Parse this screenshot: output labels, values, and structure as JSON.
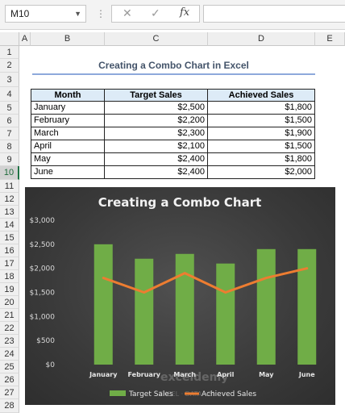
{
  "formula_bar": {
    "name_box": "M10",
    "cancel_icon": "✕",
    "enter_icon": "✓",
    "function_icon": "fx",
    "formula": ""
  },
  "columns": [
    "A",
    "B",
    "C",
    "D",
    "E"
  ],
  "rows": [
    "1",
    "2",
    "3",
    "4",
    "5",
    "6",
    "7",
    "8",
    "9",
    "10",
    "11",
    "12",
    "13",
    "14",
    "15",
    "16",
    "17",
    "18",
    "19",
    "20",
    "21",
    "22",
    "23",
    "24",
    "25",
    "26",
    "27",
    "28"
  ],
  "selected_row": "10",
  "sheet_title": "Creating a Combo Chart in Excel",
  "table": {
    "headers": [
      "Month",
      "Target Sales",
      "Achieved Sales"
    ],
    "rows": [
      [
        "January",
        "$2,500",
        "$1,800"
      ],
      [
        "February",
        "$2,200",
        "$1,500"
      ],
      [
        "March",
        "$2,300",
        "$1,900"
      ],
      [
        "April",
        "$2,100",
        "$1,500"
      ],
      [
        "May",
        "$2,400",
        "$1,800"
      ],
      [
        "June",
        "$2,400",
        "$2,000"
      ]
    ]
  },
  "chart_data": {
    "type": "bar",
    "title": "Creating a Combo Chart",
    "categories": [
      "January",
      "February",
      "March",
      "April",
      "May",
      "June"
    ],
    "series": [
      {
        "name": "Target Sales",
        "type": "bar",
        "values": [
          2500,
          2200,
          2300,
          2100,
          2400,
          2400
        ],
        "color": "#70ad47"
      },
      {
        "name": "Achieved Sales",
        "type": "line",
        "values": [
          1800,
          1500,
          1900,
          1500,
          1800,
          2000
        ],
        "color": "#ed7d31"
      }
    ],
    "y_ticks": [
      "$0",
      "$500",
      "$1,000",
      "$1,500",
      "$2,000",
      "$2,500",
      "$3,000"
    ],
    "ylim": [
      0,
      3000
    ],
    "xlabel": "",
    "ylabel": "",
    "legend": "bottom",
    "grid": false,
    "background": "#3d3d3d"
  },
  "watermark": {
    "brand": "exceldemy",
    "tagline": "EXCEL · DATA · BI"
  }
}
